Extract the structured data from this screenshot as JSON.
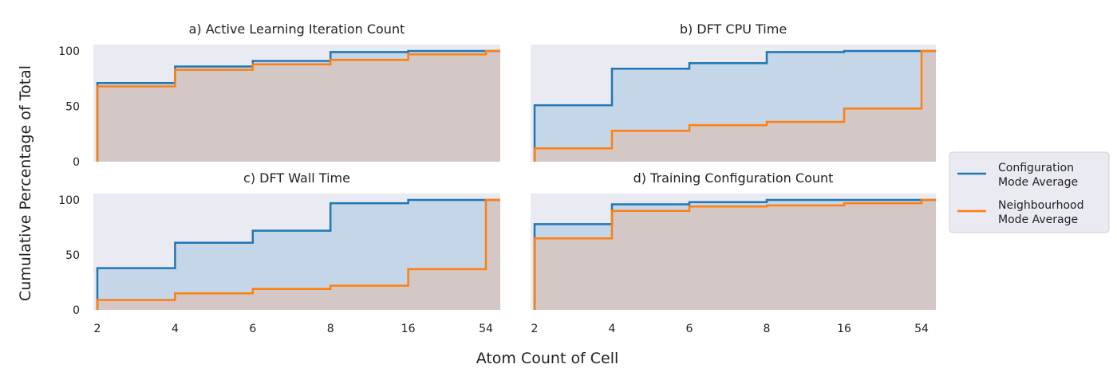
{
  "chart_data": {
    "type": "line",
    "xlabel": "Atom Count of Cell",
    "ylabel": "Cumulative Percentage of Total",
    "x_categories": [
      "2",
      "4",
      "6",
      "8",
      "16",
      "54"
    ],
    "ylim": [
      0,
      100
    ],
    "yticks": [
      0,
      50,
      100
    ],
    "legend": {
      "placement": "right",
      "entries": [
        {
          "label_line1": "Configuration",
          "label_line2": "Mode Average",
          "color": "#1f77b4"
        },
        {
          "label_line1": "Neighbourhood",
          "label_line2": "Mode Average",
          "color": "#ff7f0e"
        }
      ]
    },
    "colors": {
      "background": "#eaeaf2",
      "config_line": "#1f77b4",
      "neigh_line": "#ff7f0e",
      "config_fill": "#c5d6e8",
      "neigh_fill": "#d3c8c6"
    },
    "panels": [
      {
        "title": "a) Active Learning Iteration Count",
        "series": [
          {
            "name": "Configuration Mode Average",
            "values": [
              71,
              86,
              91,
              99,
              100,
              100
            ]
          },
          {
            "name": "Neighbourhood Mode Average",
            "values": [
              68,
              83,
              88,
              92,
              97,
              100
            ]
          }
        ]
      },
      {
        "title": "b) DFT CPU Time",
        "series": [
          {
            "name": "Configuration Mode Average",
            "values": [
              51,
              84,
              89,
              99,
              100,
              100
            ]
          },
          {
            "name": "Neighbourhood Mode Average",
            "values": [
              12,
              28,
              33,
              36,
              48,
              100
            ]
          }
        ]
      },
      {
        "title": "c) DFT Wall Time",
        "series": [
          {
            "name": "Configuration Mode Average",
            "values": [
              38,
              61,
              72,
              97,
              100,
              100
            ]
          },
          {
            "name": "Neighbourhood Mode Average",
            "values": [
              9,
              15,
              19,
              22,
              37,
              100
            ]
          }
        ]
      },
      {
        "title": "d) Training Configuration Count",
        "series": [
          {
            "name": "Configuration Mode Average",
            "values": [
              78,
              96,
              98,
              100,
              100,
              100
            ]
          },
          {
            "name": "Neighbourhood Mode Average",
            "values": [
              65,
              90,
              94,
              95,
              97,
              100
            ]
          }
        ]
      }
    ]
  }
}
